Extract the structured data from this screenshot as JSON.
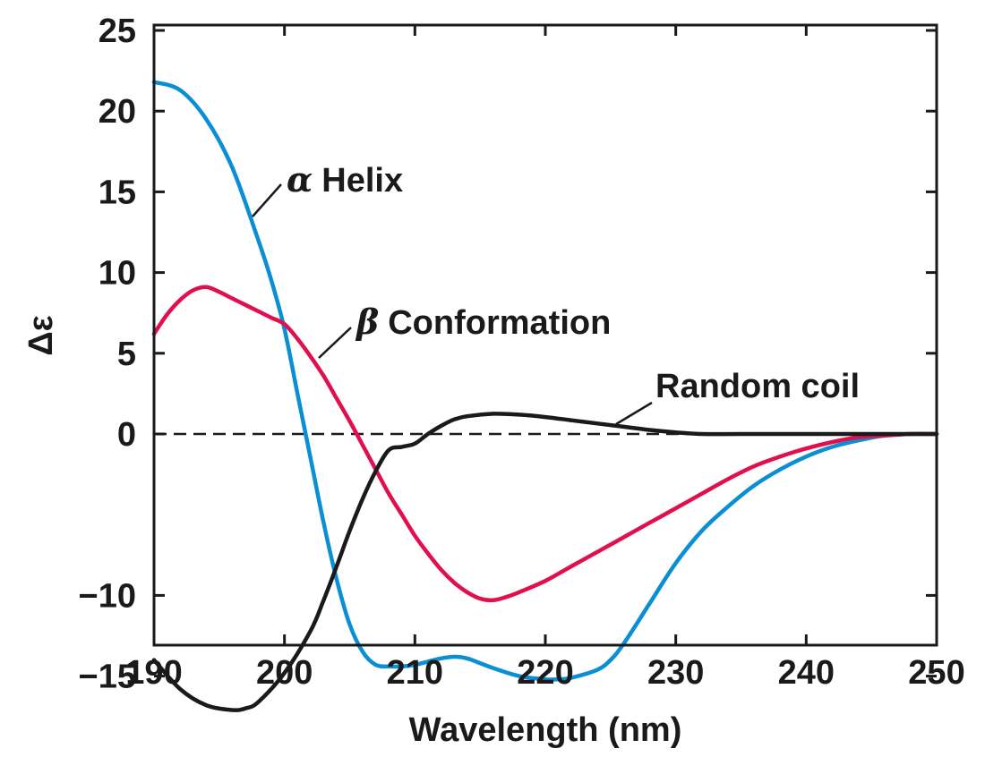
{
  "chart_data": {
    "type": "line",
    "xlabel": "Wavelength (nm)",
    "ylabel": "Δε",
    "xlim": [
      190,
      250
    ],
    "ylim": [
      -18,
      25
    ],
    "xticks": [
      "190",
      "200",
      "210",
      "220",
      "230",
      "240",
      "250"
    ],
    "yticks": [
      "25",
      "20",
      "15",
      "10",
      "5",
      "0",
      "−10",
      "−15"
    ],
    "grid": false,
    "legend": "none (direct labels)",
    "zero_line": {
      "y": 0,
      "style": "dashed"
    },
    "series": [
      {
        "name": "α Helix",
        "greek": "α",
        "text": "Helix",
        "color": "#0a8fd4",
        "x": [
          190,
          192,
          194,
          196,
          198,
          199,
          200,
          201,
          202,
          203,
          204,
          205,
          206,
          207,
          208,
          209,
          210,
          211,
          212,
          213,
          214,
          216,
          218,
          220,
          221,
          222,
          224,
          225,
          226,
          228,
          230,
          232,
          234,
          236,
          238,
          240,
          242,
          244,
          246,
          248,
          250
        ],
        "y": [
          21.8,
          21.3,
          19.5,
          16.5,
          12.0,
          9.5,
          6.5,
          2.5,
          -1.5,
          -5.5,
          -9.0,
          -11.8,
          -13.5,
          -14.3,
          -14.4,
          -14.4,
          -14.3,
          -14.1,
          -13.9,
          -13.8,
          -13.9,
          -14.5,
          -15.0,
          -15.2,
          -15.2,
          -15.1,
          -14.6,
          -14.0,
          -13.0,
          -10.5,
          -8.0,
          -6.0,
          -4.5,
          -3.2,
          -2.2,
          -1.4,
          -0.8,
          -0.4,
          -0.1,
          0.0,
          0.0
        ]
      },
      {
        "name": "β Conformation",
        "greek": "β",
        "text": "Conformation",
        "color": "#e0104f",
        "x": [
          190,
          191,
          192,
          193,
          194,
          195,
          196,
          197,
          198,
          199,
          200,
          201,
          202,
          203,
          204,
          205,
          206,
          207,
          208,
          209,
          210,
          211,
          212,
          213,
          214,
          215,
          216,
          217,
          218,
          220,
          222,
          224,
          226,
          228,
          230,
          232,
          234,
          236,
          238,
          240,
          242,
          244,
          246,
          248,
          250
        ],
        "y": [
          6.2,
          7.4,
          8.3,
          8.9,
          9.1,
          8.8,
          8.4,
          8.0,
          7.6,
          7.2,
          6.8,
          5.9,
          4.8,
          3.6,
          2.2,
          0.8,
          -0.7,
          -2.2,
          -3.7,
          -5.0,
          -6.3,
          -7.4,
          -8.4,
          -9.2,
          -9.8,
          -10.2,
          -10.3,
          -10.1,
          -9.8,
          -9.1,
          -8.2,
          -7.3,
          -6.4,
          -5.5,
          -4.6,
          -3.7,
          -2.8,
          -2.0,
          -1.4,
          -0.9,
          -0.5,
          -0.2,
          -0.1,
          0.0,
          0.0
        ]
      },
      {
        "name": "Random coil",
        "color": "#1a1a1a",
        "x": [
          190,
          192,
          194,
          196,
          197,
          198,
          200,
          202,
          203,
          204,
          205,
          206,
          207,
          208,
          209,
          210,
          211,
          212,
          213,
          214,
          216,
          218,
          220,
          222,
          224,
          226,
          228,
          230,
          232,
          235,
          240,
          245,
          250
        ],
        "y": [
          -14.0,
          -15.8,
          -16.8,
          -17.1,
          -17.0,
          -16.6,
          -14.8,
          -12.2,
          -10.3,
          -8.2,
          -6.0,
          -4.0,
          -2.3,
          -1.0,
          -0.8,
          -0.6,
          0.0,
          0.5,
          0.9,
          1.1,
          1.25,
          1.2,
          1.05,
          0.85,
          0.65,
          0.45,
          0.25,
          0.1,
          0.0,
          0.0,
          0.0,
          0.0,
          0.0
        ]
      }
    ]
  }
}
